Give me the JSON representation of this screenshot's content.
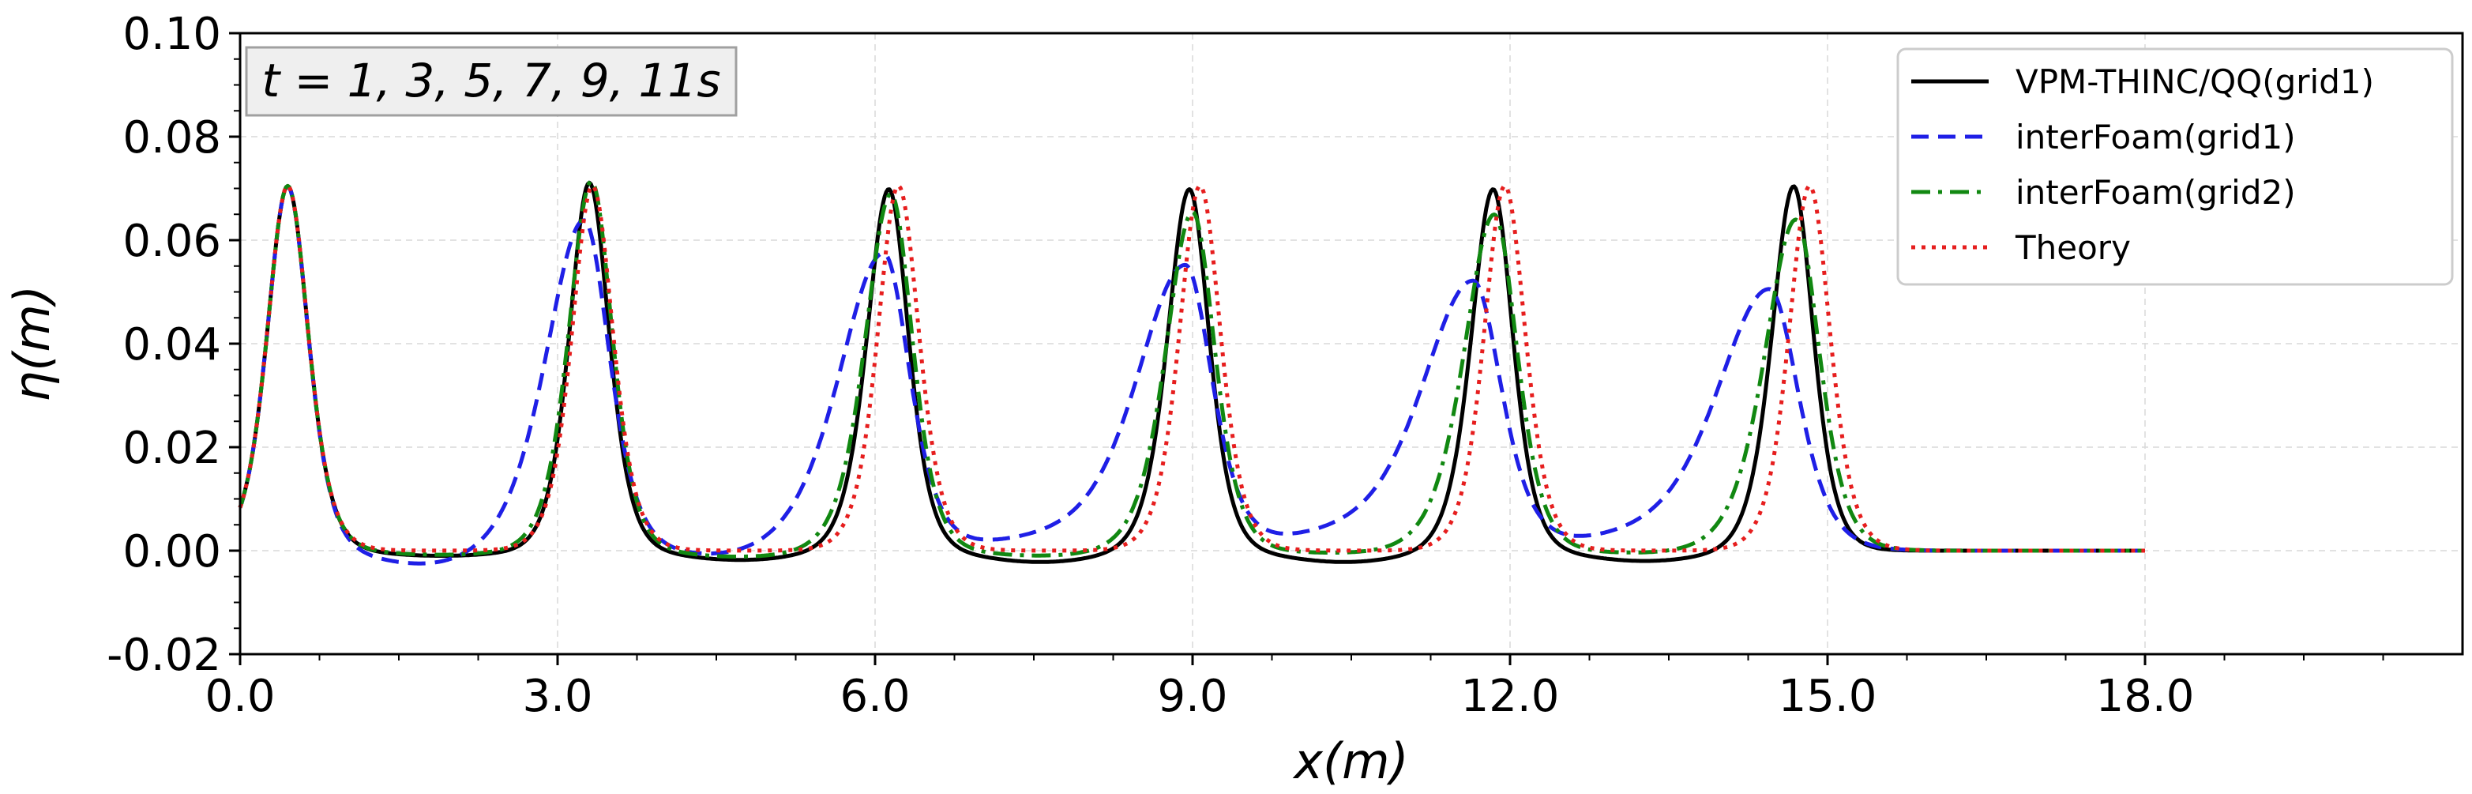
{
  "chart_data": {
    "type": "line",
    "title": "",
    "xlabel": "x(m)",
    "ylabel": "η(m)",
    "xlim": [
      0,
      21
    ],
    "ylim": [
      -0.02,
      0.1
    ],
    "xticks": [
      0,
      3,
      6,
      9,
      12,
      15,
      18
    ],
    "xtick_labels": [
      "0.0",
      "3.0",
      "6.0",
      "9.0",
      "12.0",
      "15.0",
      "18.0"
    ],
    "yticks": [
      -0.02,
      0.0,
      0.02,
      0.04,
      0.06,
      0.08,
      0.1
    ],
    "ytick_labels": [
      "-0.02",
      "0.00",
      "0.02",
      "0.04",
      "0.06",
      "0.08",
      "0.10"
    ],
    "grid": true,
    "annotation": "t = 1, 3, 5, 7, 9, 11s",
    "legend_position": "top-right",
    "domain_x": [
      0,
      18
    ],
    "series": [
      {
        "name": "VPM-THINC/QQ(grid1)",
        "color": "#000000",
        "dash": "solid",
        "peaks": [
          {
            "x": 0.45,
            "a": 0.0705,
            "w": 0.26,
            "skew": 1.0,
            "trough": 0.0
          },
          {
            "x": 3.3,
            "a": 0.0712,
            "w": 0.25,
            "skew": 1.0,
            "trough": -0.001
          },
          {
            "x": 6.13,
            "a": 0.07,
            "w": 0.25,
            "skew": 1.1,
            "trough": -0.0018
          },
          {
            "x": 8.97,
            "a": 0.07,
            "w": 0.25,
            "skew": 1.1,
            "trough": -0.0022
          },
          {
            "x": 11.84,
            "a": 0.07,
            "w": 0.25,
            "skew": 1.1,
            "trough": -0.0022
          },
          {
            "x": 14.68,
            "a": 0.0705,
            "w": 0.25,
            "skew": 1.1,
            "trough": -0.002
          }
        ]
      },
      {
        "name": "interFoam(grid1)",
        "color": "#1f1fe6",
        "dash": "dashed",
        "peaks": [
          {
            "x": 0.45,
            "a": 0.0705,
            "w": 0.26,
            "skew": 1.0,
            "trough": 0.0
          },
          {
            "x": 3.25,
            "a": 0.064,
            "w": 0.32,
            "skew": 1.5,
            "trough": -0.003
          },
          {
            "x": 6.08,
            "a": 0.0575,
            "w": 0.33,
            "skew": 1.7,
            "trough": -0.0015
          },
          {
            "x": 8.93,
            "a": 0.055,
            "w": 0.34,
            "skew": 1.8,
            "trough": 0.0015
          },
          {
            "x": 11.65,
            "a": 0.052,
            "w": 0.36,
            "skew": 1.8,
            "trough": 0.002
          },
          {
            "x": 14.45,
            "a": 0.0505,
            "w": 0.37,
            "skew": 1.8,
            "trough": 0.0015
          }
        ]
      },
      {
        "name": "interFoam(grid2)",
        "color": "#118811",
        "dash": "dashdot",
        "peaks": [
          {
            "x": 0.45,
            "a": 0.0705,
            "w": 0.26,
            "skew": 1.0,
            "trough": 0.0
          },
          {
            "x": 3.32,
            "a": 0.0715,
            "w": 0.26,
            "skew": 1.1,
            "trough": -0.0008
          },
          {
            "x": 6.15,
            "a": 0.069,
            "w": 0.27,
            "skew": 1.2,
            "trough": -0.0012
          },
          {
            "x": 9.0,
            "a": 0.0655,
            "w": 0.28,
            "skew": 1.2,
            "trough": -0.001
          },
          {
            "x": 11.85,
            "a": 0.065,
            "w": 0.29,
            "skew": 1.3,
            "trough": -0.0005
          },
          {
            "x": 14.7,
            "a": 0.064,
            "w": 0.3,
            "skew": 1.3,
            "trough": -0.0005
          }
        ]
      },
      {
        "name": "Theory",
        "color": "#e61e1e",
        "dash": "dotted",
        "peaks": [
          {
            "x": 0.45,
            "a": 0.0705,
            "w": 0.26,
            "skew": 1.0,
            "trough": 0.0
          },
          {
            "x": 3.33,
            "a": 0.0705,
            "w": 0.26,
            "skew": 1.0,
            "trough": 0.0
          },
          {
            "x": 6.22,
            "a": 0.0705,
            "w": 0.26,
            "skew": 1.0,
            "trough": 0.0
          },
          {
            "x": 9.07,
            "a": 0.0705,
            "w": 0.26,
            "skew": 1.0,
            "trough": 0.0
          },
          {
            "x": 11.95,
            "a": 0.0705,
            "w": 0.26,
            "skew": 1.0,
            "trough": 0.0
          },
          {
            "x": 14.83,
            "a": 0.0705,
            "w": 0.26,
            "skew": 1.0,
            "trough": 0.0
          }
        ]
      }
    ]
  }
}
